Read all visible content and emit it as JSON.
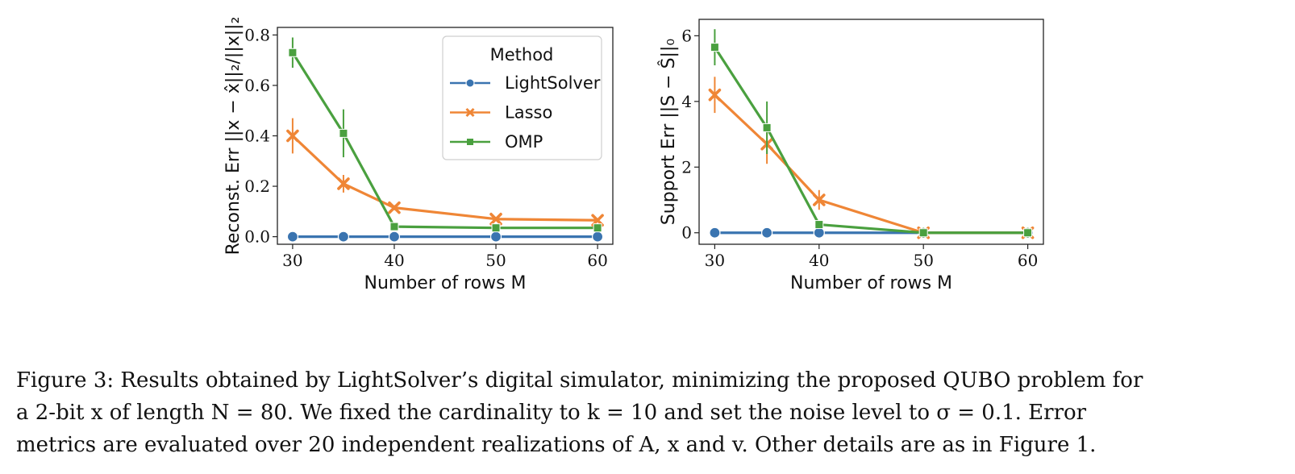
{
  "chart_data": [
    {
      "type": "line",
      "title": "",
      "xlabel": "Number of rows M",
      "ylabel": "Reconst. Err ||x − x̂||₂/||x||₂",
      "x": [
        30,
        35,
        40,
        50,
        60
      ],
      "xticks": [
        "30",
        "40",
        "50",
        "60"
      ],
      "xtick_values": [
        30,
        40,
        50,
        60
      ],
      "ylim": [
        -0.03,
        0.83
      ],
      "yticks": [
        "0.0",
        "0.2",
        "0.4",
        "0.6",
        "0.8"
      ],
      "ytick_values": [
        0.0,
        0.2,
        0.4,
        0.6,
        0.8
      ],
      "grid": false,
      "legend": {
        "title": "Method",
        "position": "top-right"
      },
      "series": [
        {
          "name": "LightSolver",
          "color": "#3a74b0",
          "marker": "circle",
          "values": [
            0.0,
            0.0,
            0.0,
            0.0,
            0.0
          ],
          "errors": [
            0.0,
            0.0,
            0.0,
            0.0,
            0.0
          ]
        },
        {
          "name": "Lasso",
          "color": "#ef8636",
          "marker": "x",
          "values": [
            0.4,
            0.21,
            0.115,
            0.07,
            0.065
          ],
          "errors": [
            0.07,
            0.035,
            0.01,
            0.006,
            0.006
          ]
        },
        {
          "name": "OMP",
          "color": "#4aa03f",
          "marker": "square",
          "values": [
            0.73,
            0.41,
            0.04,
            0.035,
            0.035
          ],
          "errors": [
            0.06,
            0.095,
            0.01,
            0.004,
            0.004
          ]
        }
      ]
    },
    {
      "type": "line",
      "title": "",
      "xlabel": "Number of rows M",
      "ylabel": "Support Err ||S − Ŝ||₀",
      "x": [
        30,
        35,
        40,
        50,
        60
      ],
      "xticks": [
        "30",
        "40",
        "50",
        "60"
      ],
      "xtick_values": [
        30,
        40,
        50,
        60
      ],
      "ylim": [
        -0.35,
        6.5
      ],
      "yticks": [
        "0",
        "2",
        "4",
        "6"
      ],
      "ytick_values": [
        0,
        2,
        4,
        6
      ],
      "grid": false,
      "series": [
        {
          "name": "LightSolver",
          "color": "#3a74b0",
          "marker": "circle",
          "values": [
            0.0,
            0.0,
            0.0,
            0.0,
            0.0
          ],
          "errors": [
            0.0,
            0.0,
            0.0,
            0.0,
            0.0
          ]
        },
        {
          "name": "Lasso",
          "color": "#ef8636",
          "marker": "x",
          "values": [
            4.2,
            2.7,
            1.0,
            0.0,
            0.0
          ],
          "errors": [
            0.55,
            0.6,
            0.3,
            0.0,
            0.0
          ]
        },
        {
          "name": "OMP",
          "color": "#4aa03f",
          "marker": "square",
          "values": [
            5.65,
            3.2,
            0.25,
            0.0,
            0.0
          ],
          "errors": [
            0.55,
            0.8,
            0.1,
            0.15,
            0.15
          ]
        }
      ]
    }
  ],
  "caption": {
    "lines": [
      "Figure 3: Results obtained by LightSolver’s digital simulator, minimizing the proposed QUBO problem for",
      "a 2-bit x of length N = 80. We fixed the cardinality to k = 10 and set the noise level to σ = 0.1. Error",
      "metrics are evaluated over 20 independent realizations of A, x and v. Other details are as in Figure 1."
    ]
  }
}
